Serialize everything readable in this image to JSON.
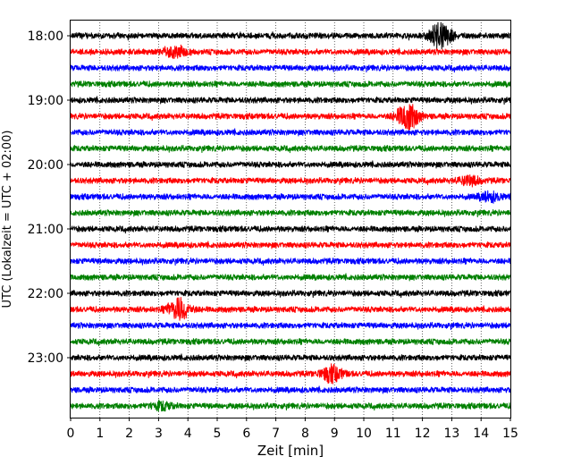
{
  "chart_data": {
    "type": "line",
    "subtype": "helicorder",
    "xlabel": "Zeit  [min]",
    "ylabel": "UTC (Lokalzeit = UTC + 02:00)",
    "xlim": [
      0,
      15
    ],
    "x_ticks": [
      "0",
      "1",
      "2",
      "3",
      "4",
      "5",
      "6",
      "7",
      "8",
      "9",
      "10",
      "11",
      "12",
      "13",
      "14",
      "15"
    ],
    "y_tick_labels": [
      "18:00",
      "19:00",
      "20:00",
      "21:00",
      "22:00",
      "23:00"
    ],
    "trace_interval_min": 15,
    "trace_colors": [
      "#000000",
      "#ff0000",
      "#0000ff",
      "#008000"
    ],
    "grid_x": true,
    "traces": [
      {
        "start": "18:00",
        "color": "#000000",
        "events": [
          {
            "t": 12.6,
            "amp": 1.6
          }
        ]
      },
      {
        "start": "18:15",
        "color": "#ff0000",
        "events": [
          {
            "t": 3.6,
            "amp": 0.6
          }
        ]
      },
      {
        "start": "18:30",
        "color": "#0000ff",
        "events": []
      },
      {
        "start": "18:45",
        "color": "#008000",
        "events": []
      },
      {
        "start": "19:00",
        "color": "#000000",
        "events": []
      },
      {
        "start": "19:15",
        "color": "#ff0000",
        "events": [
          {
            "t": 11.5,
            "amp": 1.6
          }
        ]
      },
      {
        "start": "19:30",
        "color": "#0000ff",
        "events": []
      },
      {
        "start": "19:45",
        "color": "#008000",
        "events": []
      },
      {
        "start": "20:00",
        "color": "#000000",
        "events": []
      },
      {
        "start": "20:15",
        "color": "#ff0000",
        "events": [
          {
            "t": 13.6,
            "amp": 0.5
          }
        ]
      },
      {
        "start": "20:30",
        "color": "#0000ff",
        "events": [
          {
            "t": 14.3,
            "amp": 0.5
          }
        ]
      },
      {
        "start": "20:45",
        "color": "#008000",
        "events": []
      },
      {
        "start": "21:00",
        "color": "#000000",
        "events": []
      },
      {
        "start": "21:15",
        "color": "#ff0000",
        "events": []
      },
      {
        "start": "21:30",
        "color": "#0000ff",
        "events": []
      },
      {
        "start": "21:45",
        "color": "#008000",
        "events": []
      },
      {
        "start": "22:00",
        "color": "#000000",
        "events": []
      },
      {
        "start": "22:15",
        "color": "#ff0000",
        "events": [
          {
            "t": 3.7,
            "amp": 1.3
          }
        ]
      },
      {
        "start": "22:30",
        "color": "#0000ff",
        "events": []
      },
      {
        "start": "22:45",
        "color": "#008000",
        "events": []
      },
      {
        "start": "23:00",
        "color": "#000000",
        "events": []
      },
      {
        "start": "23:15",
        "color": "#ff0000",
        "events": [
          {
            "t": 8.9,
            "amp": 0.9
          }
        ]
      },
      {
        "start": "23:30",
        "color": "#0000ff",
        "events": []
      },
      {
        "start": "23:45",
        "color": "#008000",
        "events": [
          {
            "t": 3.1,
            "amp": 0.4
          }
        ]
      }
    ]
  }
}
